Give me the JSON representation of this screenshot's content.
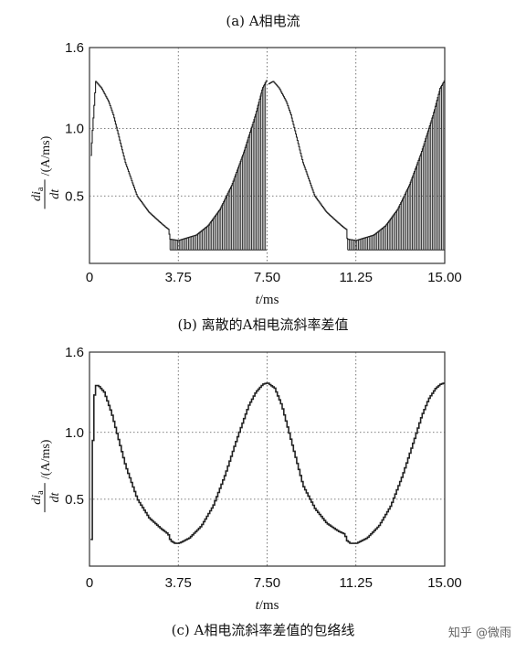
{
  "top_caption_fragment": "(a) A相电流",
  "watermark": "知乎 @微雨",
  "chart_data": [
    {
      "type": "line",
      "caption": "(b) 离散的A相电流斜率差值",
      "ylabel": "di_a/dt /(A/ms)",
      "ylabel_parts": {
        "num": "di",
        "sub": "a",
        "den": "dt",
        "unit": "/(A/ms)"
      },
      "xlabel": "t/ms",
      "xlabel_parts": {
        "var": "t",
        "unit": "/ms"
      },
      "x_ticks": [
        "0",
        "3.75",
        "7.50",
        "11.25",
        "15.00"
      ],
      "x_tick_values": [
        0,
        3.75,
        7.5,
        11.25,
        15.0
      ],
      "y_ticks": [
        "0.5",
        "1.0",
        "1.6"
      ],
      "y_tick_values": [
        0.5,
        1.0,
        1.6
      ],
      "xlim": [
        0,
        15.0
      ],
      "ylim": [
        0,
        1.6
      ],
      "grid": "dotted",
      "line_color": "#222222",
      "series": [
        {
          "style": "envelope",
          "x": [
            0.05,
            0.25,
            0.5,
            0.8,
            1.0,
            1.5,
            2.0,
            2.5,
            3.0,
            3.2,
            3.35,
            3.37,
            3.75,
            4.5,
            5.0,
            5.5,
            6.0,
            6.5,
            7.0,
            7.3,
            7.48
          ],
          "y": [
            0.8,
            1.35,
            1.3,
            1.2,
            1.1,
            0.75,
            0.5,
            0.38,
            0.3,
            0.27,
            0.25,
            0.18,
            0.17,
            0.21,
            0.28,
            0.4,
            0.58,
            0.82,
            1.1,
            1.3,
            1.36
          ]
        },
        {
          "style": "envelope",
          "x": [
            7.55,
            7.75,
            8.0,
            8.3,
            8.5,
            9.0,
            9.5,
            10.0,
            10.5,
            10.7,
            10.85,
            10.87,
            11.25,
            12.0,
            12.5,
            13.0,
            13.5,
            14.0,
            14.5,
            14.8,
            15.0
          ],
          "y": [
            1.33,
            1.35,
            1.3,
            1.2,
            1.1,
            0.75,
            0.5,
            0.38,
            0.3,
            0.27,
            0.25,
            0.18,
            0.17,
            0.21,
            0.28,
            0.4,
            0.58,
            0.82,
            1.1,
            1.3,
            1.36
          ]
        },
        {
          "style": "discrete-spikes",
          "note_floor": 0.1,
          "ranges": [
            [
              3.4,
              7.48
            ],
            [
              10.9,
              15.0
            ]
          ]
        }
      ]
    },
    {
      "type": "line",
      "caption": "(c) A相电流斜率差值的包络线",
      "ylabel": "di_a/dt /(A/ms)",
      "ylabel_parts": {
        "num": "di",
        "sub": "a",
        "den": "dt",
        "unit": "/(A/ms)"
      },
      "xlabel": "t/ms",
      "xlabel_parts": {
        "var": "t",
        "unit": "/ms"
      },
      "x_ticks": [
        "0",
        "3.75",
        "7.50",
        "11.25",
        "15.00"
      ],
      "x_tick_values": [
        0,
        3.75,
        7.5,
        11.25,
        15.0
      ],
      "y_ticks": [
        "0.5",
        "1.0",
        "1.6"
      ],
      "y_tick_values": [
        0.5,
        1.0,
        1.6
      ],
      "xlim": [
        0,
        15.0
      ],
      "ylim": [
        0,
        1.6
      ],
      "grid": "dotted",
      "line_color": "#222222",
      "series": [
        {
          "style": "envelope",
          "x": [
            0.05,
            0.1,
            0.2,
            0.35,
            0.6,
            0.9,
            1.2,
            1.5,
            2.0,
            2.5,
            3.0,
            3.3,
            3.4,
            3.6,
            3.75,
            4.2,
            4.7,
            5.2,
            5.7,
            6.2,
            6.7,
            7.0,
            7.3,
            7.5,
            7.8,
            8.1,
            8.4,
            8.7,
            9.0,
            9.5,
            10.0,
            10.5,
            10.75,
            10.85,
            11.0,
            11.25,
            11.7,
            12.2,
            12.7,
            13.2,
            13.7,
            14.0,
            14.3,
            14.6,
            14.8,
            15.0
          ],
          "y": [
            0.2,
            0.85,
            1.35,
            1.35,
            1.3,
            1.15,
            0.95,
            0.75,
            0.5,
            0.36,
            0.28,
            0.24,
            0.19,
            0.17,
            0.17,
            0.21,
            0.3,
            0.45,
            0.68,
            0.95,
            1.2,
            1.3,
            1.36,
            1.37,
            1.33,
            1.2,
            1.0,
            0.8,
            0.6,
            0.43,
            0.32,
            0.26,
            0.24,
            0.19,
            0.17,
            0.17,
            0.21,
            0.3,
            0.45,
            0.68,
            0.95,
            1.12,
            1.25,
            1.33,
            1.36,
            1.37
          ]
        }
      ]
    }
  ]
}
